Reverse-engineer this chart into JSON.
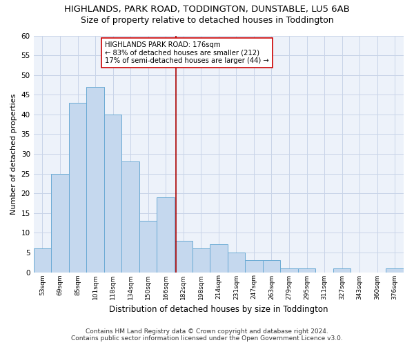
{
  "title": "HIGHLANDS, PARK ROAD, TODDINGTON, DUNSTABLE, LU5 6AB",
  "subtitle": "Size of property relative to detached houses in Toddington",
  "xlabel": "Distribution of detached houses by size in Toddington",
  "ylabel": "Number of detached properties",
  "bar_values": [
    6,
    25,
    43,
    47,
    40,
    28,
    13,
    19,
    8,
    6,
    7,
    5,
    3,
    3,
    1,
    1,
    0,
    1,
    0,
    0,
    1
  ],
  "categories": [
    "53sqm",
    "69sqm",
    "85sqm",
    "101sqm",
    "118sqm",
    "134sqm",
    "150sqm",
    "166sqm",
    "182sqm",
    "198sqm",
    "214sqm",
    "231sqm",
    "247sqm",
    "263sqm",
    "279sqm",
    "295sqm",
    "311sqm",
    "327sqm",
    "343sqm",
    "360sqm",
    "376sqm"
  ],
  "bar_color": "#c5d8ee",
  "bar_edge_color": "#6aaad4",
  "annotation_line_color": "#aa0000",
  "annotation_box_text": "HIGHLANDS PARK ROAD: 176sqm\n← 83% of detached houses are smaller (212)\n17% of semi-detached houses are larger (44) →",
  "annotation_box_color": "#cc0000",
  "annotation_box_bg": "#ffffff",
  "ylim": [
    0,
    60
  ],
  "yticks": [
    0,
    5,
    10,
    15,
    20,
    25,
    30,
    35,
    40,
    45,
    50,
    55,
    60
  ],
  "grid_color": "#c8d4e8",
  "footer_line1": "Contains HM Land Registry data © Crown copyright and database right 2024.",
  "footer_line2": "Contains public sector information licensed under the Open Government Licence v3.0.",
  "bg_color": "#edf2fa",
  "title_fontsize": 9.5,
  "subtitle_fontsize": 9,
  "xlabel_fontsize": 8.5,
  "ylabel_fontsize": 8,
  "footer_fontsize": 6.5
}
